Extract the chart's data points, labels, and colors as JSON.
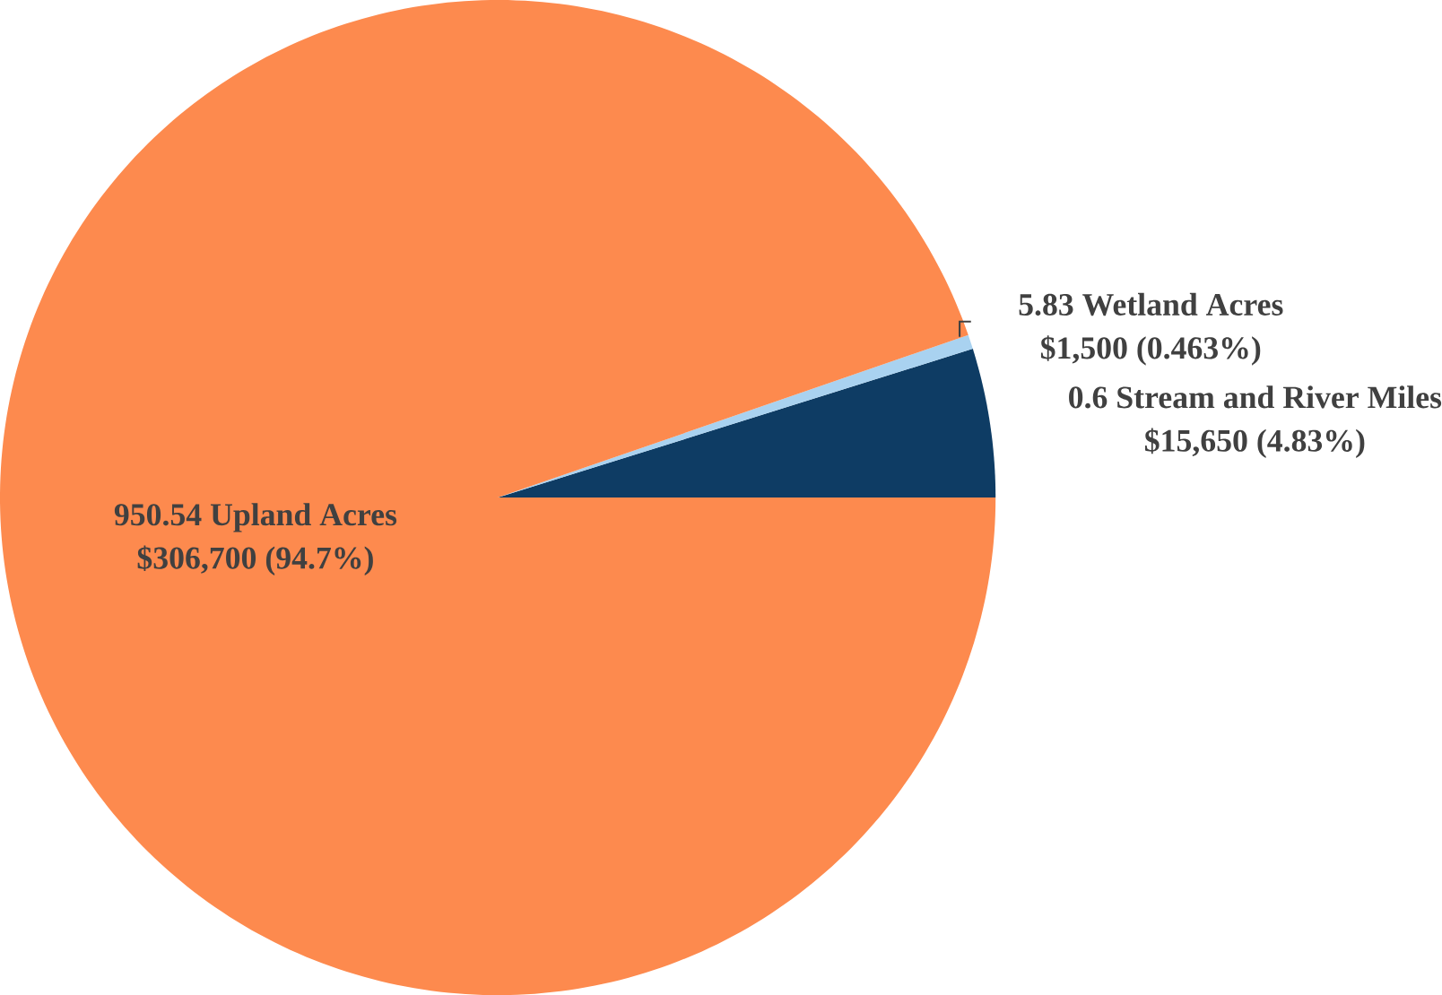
{
  "chart_data": {
    "type": "pie",
    "categories": [
      "0.6 Stream and River Miles",
      "5.83 Wetland Acres",
      "950.54 Upland Acres"
    ],
    "values": [
      15650,
      1500,
      306700
    ],
    "value_labels": [
      "$15,650  (4.83%)",
      "$1,500  (0.463%)",
      "$306,700  (94.7%)"
    ],
    "colors": [
      "#0e3c64",
      "#a9d2f0",
      "#fd8a4e"
    ]
  }
}
